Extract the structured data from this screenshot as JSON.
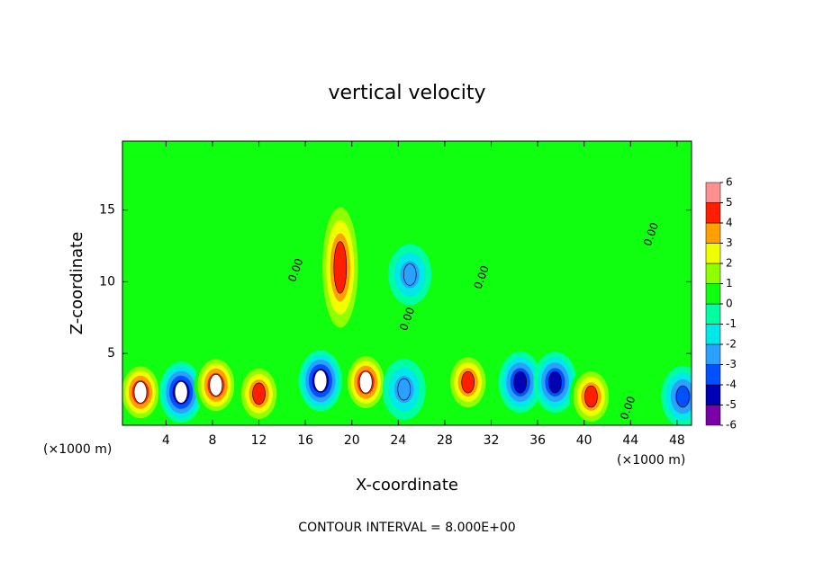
{
  "chart_data": {
    "type": "contour",
    "title": "vertical velocity",
    "x_label": "X-coordinate",
    "y_label": "Z-coordinate",
    "x_unit_left": "(×1000 m)",
    "x_unit_right": "(×1000 m)",
    "footer": "CONTOUR INTERVAL = 8.000E+00",
    "xlim": [
      0.25,
      49.25
    ],
    "ylim": [
      0,
      19.8
    ],
    "xticks": [
      4,
      8,
      12,
      16,
      20,
      24,
      28,
      32,
      36,
      40,
      44,
      48
    ],
    "yticks": [
      5,
      10,
      15
    ],
    "colorbar_lim": [
      -6,
      6
    ],
    "colorbar_ticks": [
      6,
      5,
      4,
      3,
      2,
      1,
      0,
      -1,
      -2,
      -3,
      -4,
      -5,
      -6
    ],
    "colors": [
      "#7a00a8",
      "#0000b4",
      "#0050ff",
      "#2aa0ff",
      "#00e8e8",
      "#00ffa0",
      "#10ff10",
      "#90ff00",
      "#f0ff00",
      "#ffa000",
      "#ff1e00",
      "#ff9090"
    ],
    "x": [
      1.8,
      5.3,
      8.3,
      12,
      17.3,
      21.2,
      19,
      25,
      30,
      34.5,
      37.5,
      40.6,
      48.5,
      24.5
    ],
    "y": [
      2.3,
      2.3,
      2.8,
      2.2,
      3.1,
      3,
      11,
      10.5,
      3,
      3,
      3,
      2,
      2,
      2.5
    ],
    "values": [
      6,
      -6,
      6,
      5,
      -6,
      6,
      5,
      -3,
      5,
      -5,
      -5,
      5,
      -4,
      -3
    ],
    "annotations": [
      {
        "text": "0.00",
        "x": 15.2,
        "y": 10.8
      },
      {
        "text": "0.00",
        "x": 24.8,
        "y": 7.4
      },
      {
        "text": "0.00",
        "x": 31.2,
        "y": 10.3
      },
      {
        "text": "0.00",
        "x": 43.8,
        "y": 1.2
      },
      {
        "text": "0.00",
        "x": 45.8,
        "y": 13.3
      }
    ]
  }
}
